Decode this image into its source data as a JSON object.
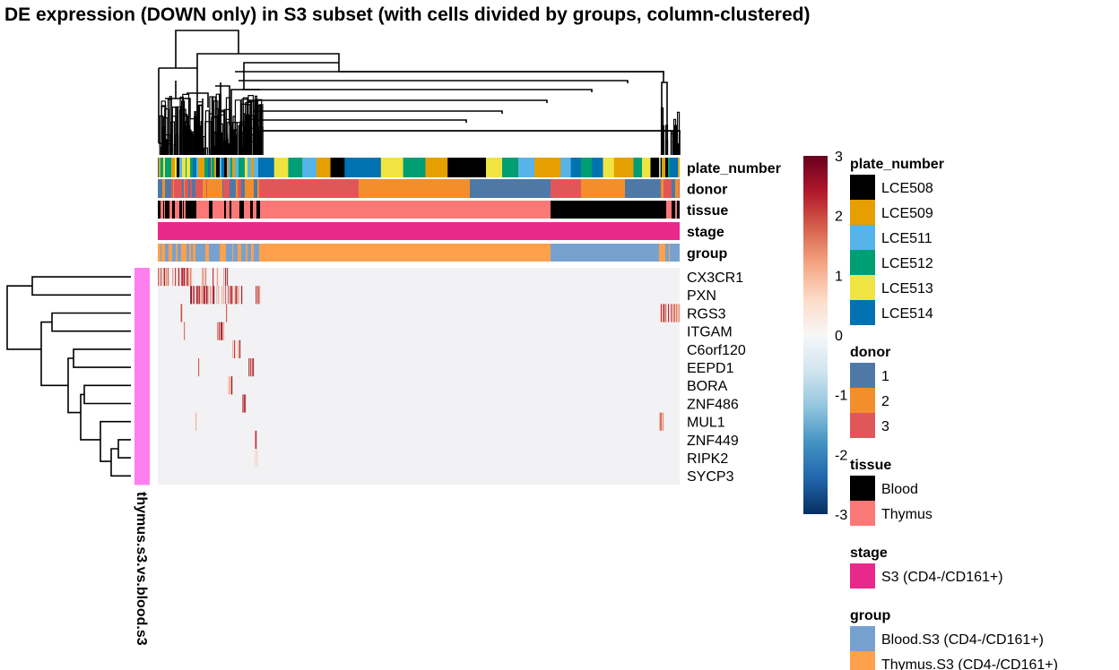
{
  "chart_data": {
    "type": "heatmap",
    "title": "DE expression (DOWN only) in S3 subset (with cells divided by groups, column-clustered)",
    "genes": [
      "CX3CR1",
      "PXN",
      "RGS3",
      "ITGAM",
      "C6orf120",
      "EEPD1",
      "BORA",
      "ZNF486",
      "MUL1",
      "ZNF449",
      "RIPK2",
      "SYCP3"
    ],
    "row_group_label": "thymus.s3.vs.blood.s3",
    "row_group_color": "#FF7FEF",
    "column_annotations": [
      "plate_number",
      "donor",
      "tissue",
      "stage",
      "group"
    ],
    "color_scale": {
      "ticks": [
        3,
        2,
        1,
        0,
        -1,
        -2,
        -3
      ],
      "range": [
        -3,
        3
      ],
      "colors": [
        "#053061",
        "#2166AC",
        "#4393C3",
        "#92C5DE",
        "#D1E5F0",
        "#F7F7F7",
        "#FDDBC7",
        "#F4A582",
        "#D6604D",
        "#B2182B",
        "#67001F"
      ],
      "background": "#F2F2F4"
    },
    "legends": [
      {
        "title": "plate_number",
        "items": [
          {
            "label": "LCE508",
            "color": "#000000"
          },
          {
            "label": "LCE509",
            "color": "#E69F00"
          },
          {
            "label": "LCE511",
            "color": "#56B4E9"
          },
          {
            "label": "LCE512",
            "color": "#009E73"
          },
          {
            "label": "LCE513",
            "color": "#F0E442"
          },
          {
            "label": "LCE514",
            "color": "#0072B2"
          }
        ]
      },
      {
        "title": "donor",
        "items": [
          {
            "label": "1",
            "color": "#4E79A7"
          },
          {
            "label": "2",
            "color": "#F28E2B"
          },
          {
            "label": "3",
            "color": "#E15759"
          }
        ]
      },
      {
        "title": "tissue",
        "items": [
          {
            "label": "Blood",
            "color": "#000000"
          },
          {
            "label": "Thymus",
            "color": "#FA7876"
          }
        ]
      },
      {
        "title": "stage",
        "items": [
          {
            "label": "S3 (CD4-/CD161+)",
            "color": "#E9288B"
          }
        ]
      },
      {
        "title": "group",
        "items": [
          {
            "label": "Blood.S3 (CD4-/CD161+)",
            "color": "#77A2D0"
          },
          {
            "label": "Thymus.S3 (CD4-/CD161+)",
            "color": "#FFA04D"
          }
        ]
      }
    ]
  }
}
